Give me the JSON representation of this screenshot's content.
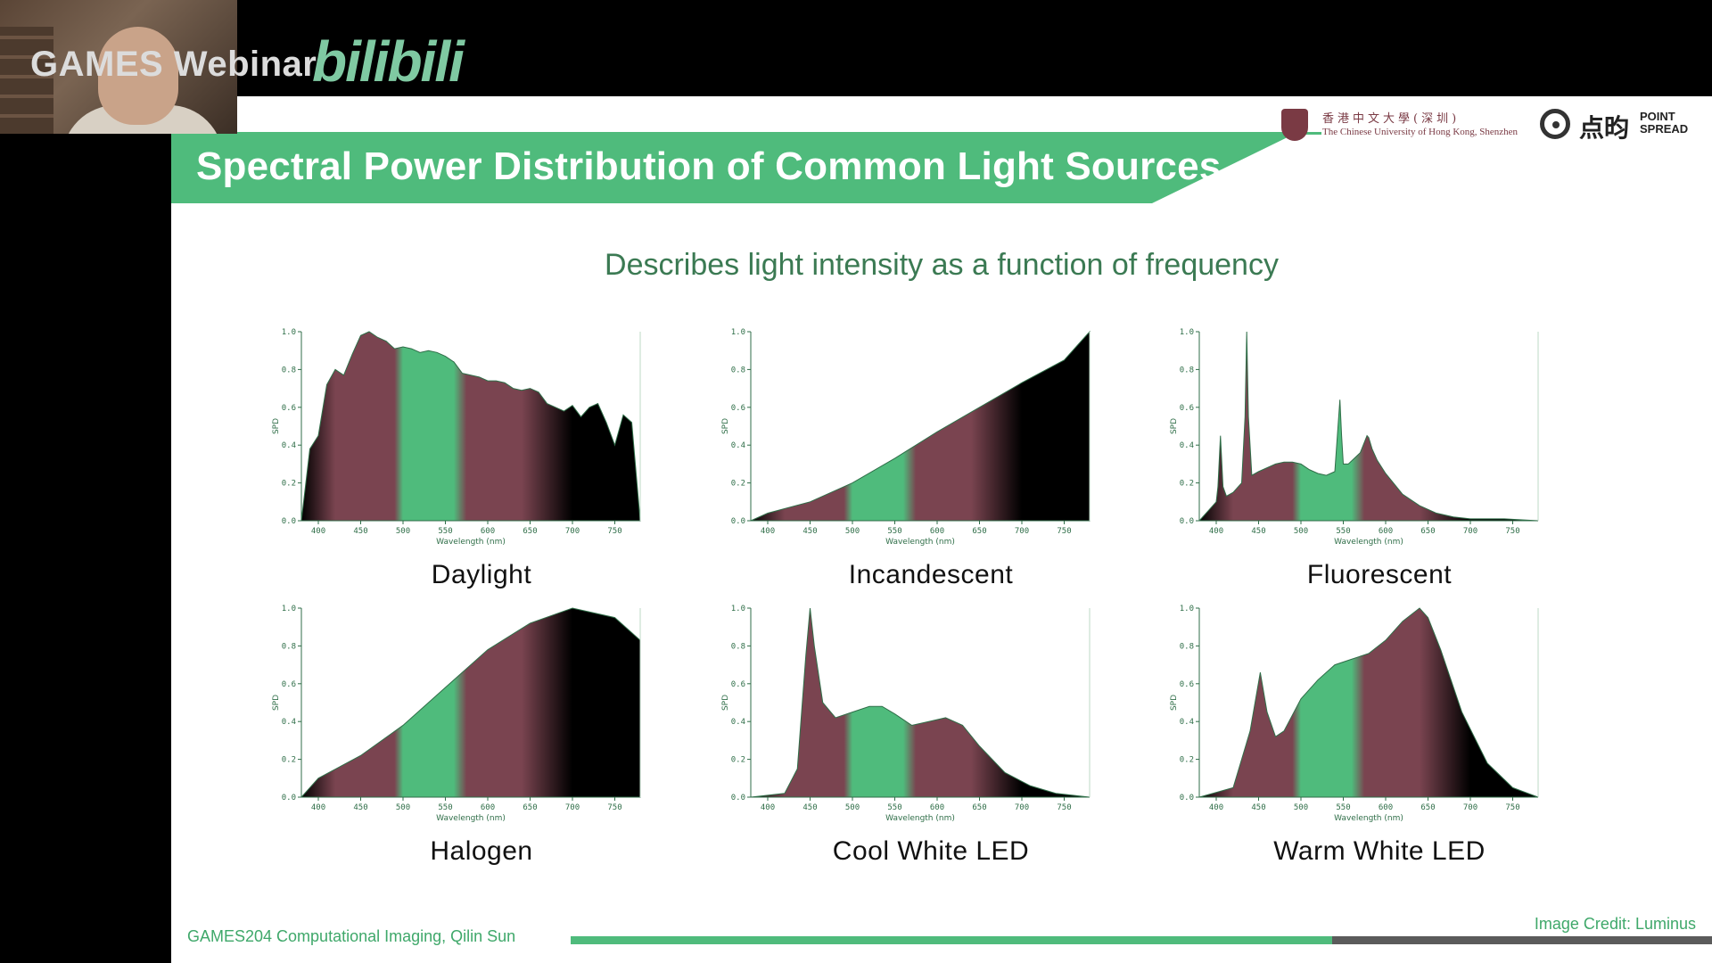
{
  "stream": {
    "webinar_label": "GAMES Webinar",
    "platform_logo": "bilibili"
  },
  "slide": {
    "title": "Spectral Power Distribution of Common Light Sources",
    "subtitle": "Describes light intensity as a function of frequency",
    "cuhk_cn": "香港中文大學(深圳)",
    "cuhk_en": "The Chinese University of Hong Kong, Shenzhen",
    "ps_cn": "点昀",
    "ps_en": "POINT SPREAD",
    "footer": "GAMES204 Computational Imaging, Qilin Sun",
    "credit": "Image Credit: Luminus",
    "progress": 0.667,
    "colors": {
      "accent": "#4fbb7c",
      "maroon": "#7a4450",
      "dark_green": "#3b7a53"
    }
  },
  "chart_data": [
    {
      "type": "area",
      "caption": "Daylight",
      "ylabel": "SPD",
      "xlabel": "Wavelength (nm)",
      "xlim": [
        380,
        780
      ],
      "ylim": [
        0,
        1.0
      ],
      "xticks": [
        400,
        450,
        500,
        550,
        600,
        650,
        700,
        750
      ],
      "yticks": [
        0.0,
        0.2,
        0.4,
        0.6,
        0.8,
        1.0
      ],
      "x": [
        380,
        390,
        400,
        410,
        420,
        430,
        440,
        450,
        460,
        470,
        480,
        490,
        500,
        510,
        520,
        530,
        540,
        550,
        560,
        570,
        580,
        590,
        600,
        610,
        620,
        630,
        640,
        650,
        660,
        670,
        680,
        690,
        700,
        710,
        720,
        730,
        740,
        750,
        760,
        770,
        780
      ],
      "y": [
        0.0,
        0.38,
        0.45,
        0.72,
        0.8,
        0.77,
        0.88,
        0.98,
        1.0,
        0.97,
        0.95,
        0.91,
        0.92,
        0.91,
        0.89,
        0.9,
        0.89,
        0.87,
        0.84,
        0.78,
        0.77,
        0.76,
        0.74,
        0.74,
        0.73,
        0.7,
        0.69,
        0.7,
        0.68,
        0.62,
        0.6,
        0.58,
        0.61,
        0.55,
        0.6,
        0.62,
        0.52,
        0.4,
        0.56,
        0.52,
        0.0
      ]
    },
    {
      "type": "area",
      "caption": "Incandescent",
      "ylabel": "SPD",
      "xlabel": "Wavelength (nm)",
      "xlim": [
        380,
        780
      ],
      "ylim": [
        0,
        1.0
      ],
      "xticks": [
        400,
        450,
        500,
        550,
        600,
        650,
        700,
        750
      ],
      "yticks": [
        0.0,
        0.2,
        0.4,
        0.6,
        0.8,
        1.0
      ],
      "x": [
        380,
        400,
        450,
        500,
        550,
        600,
        650,
        700,
        750,
        780
      ],
      "y": [
        0.0,
        0.04,
        0.1,
        0.2,
        0.33,
        0.47,
        0.6,
        0.73,
        0.85,
        1.0
      ]
    },
    {
      "type": "area",
      "caption": "Fluorescent",
      "ylabel": "SPD",
      "xlabel": "Wavelength (nm)",
      "xlim": [
        380,
        780
      ],
      "ylim": [
        0,
        1.0
      ],
      "xticks": [
        400,
        450,
        500,
        550,
        600,
        650,
        700,
        750
      ],
      "yticks": [
        0.0,
        0.2,
        0.4,
        0.6,
        0.8,
        1.0
      ],
      "x": [
        380,
        390,
        400,
        402,
        405,
        408,
        412,
        420,
        430,
        434,
        436,
        438,
        442,
        450,
        470,
        480,
        490,
        500,
        510,
        520,
        530,
        540,
        543,
        546,
        548,
        550,
        556,
        570,
        578,
        580,
        584,
        590,
        600,
        620,
        640,
        660,
        680,
        700,
        740,
        780
      ],
      "y": [
        0.0,
        0.05,
        0.1,
        0.18,
        0.45,
        0.18,
        0.13,
        0.15,
        0.2,
        0.55,
        1.0,
        0.55,
        0.24,
        0.26,
        0.3,
        0.31,
        0.31,
        0.3,
        0.27,
        0.25,
        0.24,
        0.26,
        0.45,
        0.64,
        0.45,
        0.3,
        0.3,
        0.36,
        0.45,
        0.44,
        0.38,
        0.32,
        0.25,
        0.14,
        0.08,
        0.04,
        0.02,
        0.01,
        0.01,
        0.0
      ]
    },
    {
      "type": "area",
      "caption": "Halogen",
      "ylabel": "SPD",
      "xlabel": "Wavelength (nm)",
      "xlim": [
        380,
        780
      ],
      "ylim": [
        0,
        1.0
      ],
      "xticks": [
        400,
        450,
        500,
        550,
        600,
        650,
        700,
        750
      ],
      "yticks": [
        0.0,
        0.2,
        0.4,
        0.6,
        0.8,
        1.0
      ],
      "x": [
        380,
        400,
        450,
        500,
        550,
        600,
        650,
        700,
        750,
        780
      ],
      "y": [
        0.0,
        0.1,
        0.22,
        0.38,
        0.58,
        0.78,
        0.92,
        1.0,
        0.95,
        0.83
      ]
    },
    {
      "type": "area",
      "caption": "Cool White LED",
      "ylabel": "SPD",
      "xlabel": "Wavelength (nm)",
      "xlim": [
        380,
        780
      ],
      "ylim": [
        0,
        1.0
      ],
      "xticks": [
        400,
        450,
        500,
        550,
        600,
        650,
        700,
        750
      ],
      "yticks": [
        0.0,
        0.2,
        0.4,
        0.6,
        0.8,
        1.0
      ],
      "x": [
        380,
        420,
        435,
        445,
        450,
        455,
        465,
        480,
        500,
        520,
        535,
        550,
        570,
        590,
        610,
        630,
        650,
        680,
        710,
        740,
        780
      ],
      "y": [
        0.0,
        0.02,
        0.15,
        0.75,
        1.0,
        0.8,
        0.5,
        0.42,
        0.45,
        0.48,
        0.48,
        0.44,
        0.38,
        0.4,
        0.42,
        0.38,
        0.27,
        0.13,
        0.06,
        0.02,
        0.0
      ]
    },
    {
      "type": "area",
      "caption": "Warm White LED",
      "ylabel": "SPD",
      "xlabel": "Wavelength (nm)",
      "xlim": [
        380,
        780
      ],
      "ylim": [
        0,
        1.0
      ],
      "xticks": [
        400,
        450,
        500,
        550,
        600,
        650,
        700,
        750
      ],
      "yticks": [
        0.0,
        0.2,
        0.4,
        0.6,
        0.8,
        1.0
      ],
      "x": [
        380,
        420,
        440,
        452,
        460,
        470,
        480,
        500,
        520,
        540,
        560,
        580,
        600,
        620,
        640,
        650,
        665,
        690,
        720,
        750,
        780
      ],
      "y": [
        0.0,
        0.05,
        0.35,
        0.66,
        0.45,
        0.32,
        0.35,
        0.52,
        0.62,
        0.7,
        0.73,
        0.76,
        0.83,
        0.93,
        1.0,
        0.95,
        0.78,
        0.45,
        0.18,
        0.05,
        0.0
      ]
    }
  ]
}
